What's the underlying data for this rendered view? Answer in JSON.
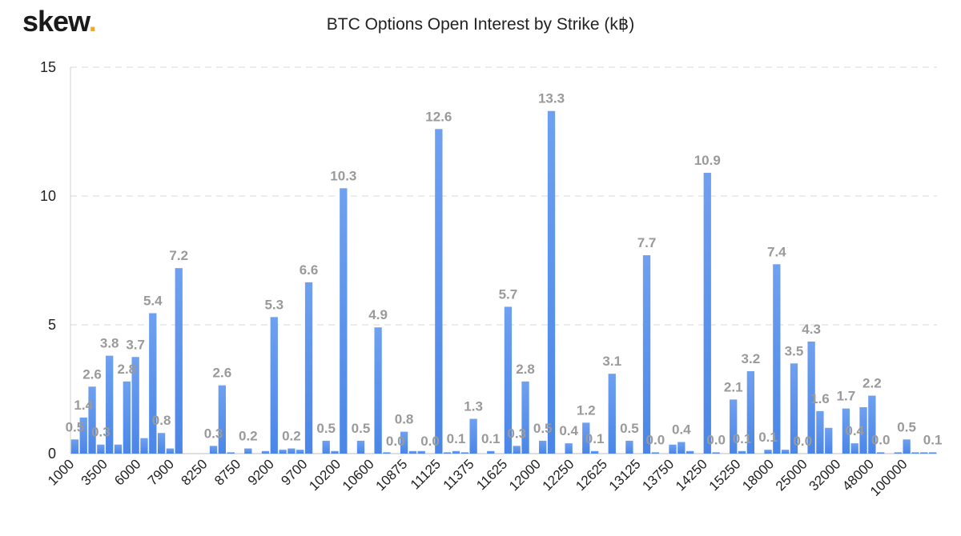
{
  "header": {
    "logo_text": "skew",
    "logo_dot": ".",
    "title": "BTC Options Open Interest by Strike (k฿)"
  },
  "colors": {
    "bar": "#4a86e8",
    "bar_light": "#6fa0f0",
    "grid": "#e6e6e6",
    "label": "#9a9a9a"
  },
  "chart_data": {
    "type": "bar",
    "title": "BTC Options Open Interest by Strike (k฿)",
    "xlabel": "",
    "ylabel": "",
    "ylim": [
      0,
      15
    ],
    "yticks": [
      0,
      5,
      10,
      15
    ],
    "grid": true,
    "x_tick_labels": [
      "1000",
      "3500",
      "6000",
      "7900",
      "8250",
      "8750",
      "9200",
      "9700",
      "10200",
      "10600",
      "10875",
      "11125",
      "11375",
      "11625",
      "12000",
      "12250",
      "12625",
      "13125",
      "13750",
      "14250",
      "15250",
      "18000",
      "25000",
      "32000",
      "48000",
      "100000"
    ],
    "values": [
      0.55,
      1.4,
      2.6,
      0.35,
      3.8,
      0.35,
      2.8,
      3.75,
      0.6,
      5.45,
      0.8,
      0.2,
      7.2,
      0.0,
      0.0,
      0.0,
      0.3,
      2.65,
      0.05,
      0.0,
      0.2,
      0.0,
      0.1,
      5.3,
      0.15,
      0.2,
      0.15,
      6.65,
      0.0,
      0.5,
      0.1,
      10.3,
      0.0,
      0.5,
      0.0,
      4.9,
      0.05,
      0.0,
      0.85,
      0.1,
      0.1,
      0.0,
      12.6,
      0.05,
      0.1,
      0.05,
      1.35,
      0.0,
      0.1,
      0.0,
      5.7,
      0.3,
      2.8,
      0.0,
      0.5,
      13.3,
      0.0,
      0.4,
      0.0,
      1.2,
      0.1,
      0.0,
      3.1,
      0.0,
      0.5,
      0.0,
      7.7,
      0.05,
      0.0,
      0.35,
      0.45,
      0.1,
      0.0,
      10.9,
      0.05,
      0.0,
      2.1,
      0.1,
      3.2,
      0.0,
      0.15,
      7.35,
      0.15,
      3.5,
      0.0,
      4.35,
      1.65,
      1.0,
      0.0,
      1.75,
      0.4,
      1.8,
      2.25,
      0.05,
      0.0,
      0.05,
      0.55,
      0.05,
      0.05,
      0.05
    ],
    "data_labels": [
      {
        "index": 0,
        "text": "0.5"
      },
      {
        "index": 1,
        "text": "1.4"
      },
      {
        "index": 2,
        "text": "2.6"
      },
      {
        "index": 3,
        "text": "0.3"
      },
      {
        "index": 4,
        "text": "3.8"
      },
      {
        "index": 6,
        "text": "2.8"
      },
      {
        "index": 7,
        "text": "3.7"
      },
      {
        "index": 9,
        "text": "5.4"
      },
      {
        "index": 10,
        "text": "0.8"
      },
      {
        "index": 12,
        "text": "7.2"
      },
      {
        "index": 16,
        "text": "0.3"
      },
      {
        "index": 17,
        "text": "2.6"
      },
      {
        "index": 20,
        "text": "0.2"
      },
      {
        "index": 23,
        "text": "5.3"
      },
      {
        "index": 25,
        "text": "0.2"
      },
      {
        "index": 27,
        "text": "6.6"
      },
      {
        "index": 29,
        "text": "0.5"
      },
      {
        "index": 31,
        "text": "10.3"
      },
      {
        "index": 33,
        "text": "0.5"
      },
      {
        "index": 35,
        "text": "4.9"
      },
      {
        "index": 37,
        "text": "0.0"
      },
      {
        "index": 38,
        "text": "0.8"
      },
      {
        "index": 41,
        "text": "0.0"
      },
      {
        "index": 42,
        "text": "12.6"
      },
      {
        "index": 44,
        "text": "0.1"
      },
      {
        "index": 46,
        "text": "1.3"
      },
      {
        "index": 48,
        "text": "0.1"
      },
      {
        "index": 50,
        "text": "5.7"
      },
      {
        "index": 51,
        "text": "0.3"
      },
      {
        "index": 52,
        "text": "2.8"
      },
      {
        "index": 54,
        "text": "0.5"
      },
      {
        "index": 55,
        "text": "13.3"
      },
      {
        "index": 57,
        "text": "0.4"
      },
      {
        "index": 59,
        "text": "1.2"
      },
      {
        "index": 60,
        "text": "0.1"
      },
      {
        "index": 62,
        "text": "3.1"
      },
      {
        "index": 64,
        "text": "0.5"
      },
      {
        "index": 66,
        "text": "7.7"
      },
      {
        "index": 67,
        "text": "0.0"
      },
      {
        "index": 70,
        "text": "0.4"
      },
      {
        "index": 73,
        "text": "10.9"
      },
      {
        "index": 74,
        "text": "0.0"
      },
      {
        "index": 76,
        "text": "2.1"
      },
      {
        "index": 77,
        "text": "0.1"
      },
      {
        "index": 78,
        "text": "3.2"
      },
      {
        "index": 80,
        "text": "0.1"
      },
      {
        "index": 81,
        "text": "7.4"
      },
      {
        "index": 83,
        "text": "3.5"
      },
      {
        "index": 84,
        "text": "0.0"
      },
      {
        "index": 85,
        "text": "4.3"
      },
      {
        "index": 86,
        "text": "1.6"
      },
      {
        "index": 89,
        "text": "1.7"
      },
      {
        "index": 90,
        "text": "0.4"
      },
      {
        "index": 92,
        "text": "2.2"
      },
      {
        "index": 93,
        "text": "0.0"
      },
      {
        "index": 96,
        "text": "0.5"
      },
      {
        "index": 99,
        "text": "0.1"
      }
    ]
  }
}
